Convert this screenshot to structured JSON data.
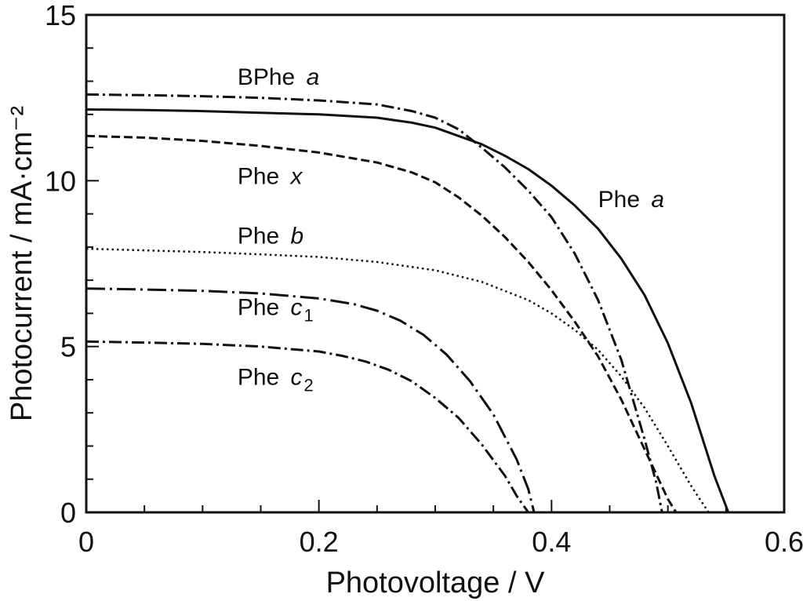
{
  "chart_data": {
    "type": "line",
    "title": "",
    "xlabel": "Photovoltage / V",
    "ylabel": "Photocurrent / mA·cm⁻²",
    "xlim": [
      0,
      0.6
    ],
    "ylim": [
      0,
      15
    ],
    "xticks": [
      0,
      0.2,
      0.4,
      0.6
    ],
    "xtick_labels": [
      "0",
      "0.2",
      "0.4",
      "0.6"
    ],
    "yticks": [
      0,
      5,
      10,
      15
    ],
    "ytick_labels": [
      "0",
      "5",
      "10",
      "15"
    ],
    "grid": false,
    "legend": "none",
    "series": [
      {
        "name": "BPhe a",
        "label": {
          "base": "BPhe ",
          "italic": "a",
          "sub": ""
        },
        "label_at": [
          0.13,
          12.9
        ],
        "dash": "dash-dot",
        "x": [
          0,
          0.05,
          0.1,
          0.15,
          0.2,
          0.25,
          0.28,
          0.3,
          0.32,
          0.34,
          0.36,
          0.38,
          0.4,
          0.42,
          0.44,
          0.46,
          0.48,
          0.49,
          0.495
        ],
        "y": [
          12.6,
          12.58,
          12.55,
          12.5,
          12.42,
          12.3,
          12.1,
          11.9,
          11.55,
          11.0,
          10.4,
          9.7,
          8.9,
          7.8,
          6.4,
          4.6,
          2.2,
          0.9,
          0
        ]
      },
      {
        "name": "Phe a",
        "label": {
          "base": "Phe ",
          "italic": "a",
          "sub": ""
        },
        "label_at": [
          0.44,
          9.2
        ],
        "dash": "solid",
        "x": [
          0,
          0.05,
          0.1,
          0.15,
          0.2,
          0.25,
          0.28,
          0.3,
          0.32,
          0.34,
          0.36,
          0.38,
          0.4,
          0.42,
          0.44,
          0.46,
          0.48,
          0.5,
          0.52,
          0.54,
          0.552
        ],
        "y": [
          12.15,
          12.13,
          12.1,
          12.05,
          12.0,
          11.9,
          11.75,
          11.6,
          11.35,
          11.1,
          10.75,
          10.35,
          9.85,
          9.25,
          8.55,
          7.65,
          6.55,
          5.1,
          3.3,
          1.1,
          0
        ]
      },
      {
        "name": "Phe x",
        "label": {
          "base": "Phe ",
          "italic": "x",
          "sub": ""
        },
        "label_at": [
          0.13,
          9.9
        ],
        "dash": "dash",
        "x": [
          0,
          0.05,
          0.1,
          0.15,
          0.2,
          0.25,
          0.28,
          0.3,
          0.32,
          0.34,
          0.36,
          0.38,
          0.4,
          0.42,
          0.44,
          0.46,
          0.48,
          0.5,
          0.507
        ],
        "y": [
          11.35,
          11.3,
          11.2,
          11.05,
          10.85,
          10.55,
          10.25,
          9.95,
          9.5,
          8.95,
          8.3,
          7.55,
          6.7,
          5.75,
          4.7,
          3.4,
          1.9,
          0.4,
          0
        ]
      },
      {
        "name": "Phe b",
        "label": {
          "base": "Phe ",
          "italic": "b",
          "sub": ""
        },
        "label_at": [
          0.13,
          8.1
        ],
        "dash": "dot",
        "x": [
          0,
          0.05,
          0.1,
          0.15,
          0.2,
          0.25,
          0.3,
          0.34,
          0.38,
          0.4,
          0.42,
          0.44,
          0.46,
          0.48,
          0.5,
          0.52,
          0.535
        ],
        "y": [
          7.95,
          7.9,
          7.85,
          7.78,
          7.7,
          7.55,
          7.3,
          6.95,
          6.4,
          6.0,
          5.5,
          4.9,
          4.1,
          3.15,
          2.0,
          0.8,
          0
        ]
      },
      {
        "name": "Phe c1",
        "label": {
          "base": "Phe ",
          "italic": "c",
          "sub": "1"
        },
        "label_at": [
          0.13,
          5.95
        ],
        "dash": "long-dash-dot",
        "x": [
          0,
          0.05,
          0.1,
          0.15,
          0.2,
          0.23,
          0.25,
          0.27,
          0.29,
          0.31,
          0.33,
          0.35,
          0.37,
          0.38,
          0.385
        ],
        "y": [
          6.75,
          6.72,
          6.68,
          6.6,
          6.45,
          6.28,
          6.08,
          5.78,
          5.35,
          4.75,
          3.95,
          2.95,
          1.6,
          0.7,
          0
        ]
      },
      {
        "name": "Phe c2",
        "label": {
          "base": "Phe ",
          "italic": "c",
          "sub": "2"
        },
        "label_at": [
          0.13,
          3.85
        ],
        "dash": "dash-dot",
        "x": [
          0,
          0.05,
          0.1,
          0.15,
          0.2,
          0.22,
          0.24,
          0.26,
          0.28,
          0.3,
          0.32,
          0.34,
          0.36,
          0.37,
          0.38
        ],
        "y": [
          5.15,
          5.12,
          5.08,
          5.0,
          4.85,
          4.72,
          4.55,
          4.3,
          3.95,
          3.45,
          2.85,
          2.05,
          1.1,
          0.5,
          0
        ]
      }
    ]
  }
}
